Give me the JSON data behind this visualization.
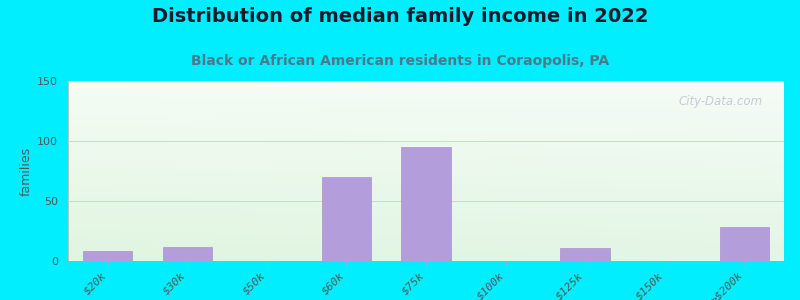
{
  "title": "Distribution of median family income in 2022",
  "subtitle": "Black or African American residents in Coraopolis, PA",
  "ylabel": "families",
  "categories": [
    "$20k",
    "$30k",
    "$50k",
    "$60k",
    "$75k",
    "$100k",
    "$125k",
    "$150k",
    ">$200k"
  ],
  "values": [
    8,
    12,
    0,
    70,
    95,
    0,
    11,
    0,
    28
  ],
  "bar_color": "#b39ddb",
  "bar_edge_color": "#9e86c8",
  "ylim": [
    0,
    150
  ],
  "yticks": [
    0,
    50,
    100,
    150
  ],
  "bg_top_color": "#e8f5e9",
  "bg_bottom_color": "#f5faf0",
  "bg_right_color": "#e8f0f8",
  "outer_bg": "#00eeff",
  "title_fontsize": 14,
  "subtitle_fontsize": 10,
  "ylabel_fontsize": 9,
  "watermark": "City-Data.com"
}
